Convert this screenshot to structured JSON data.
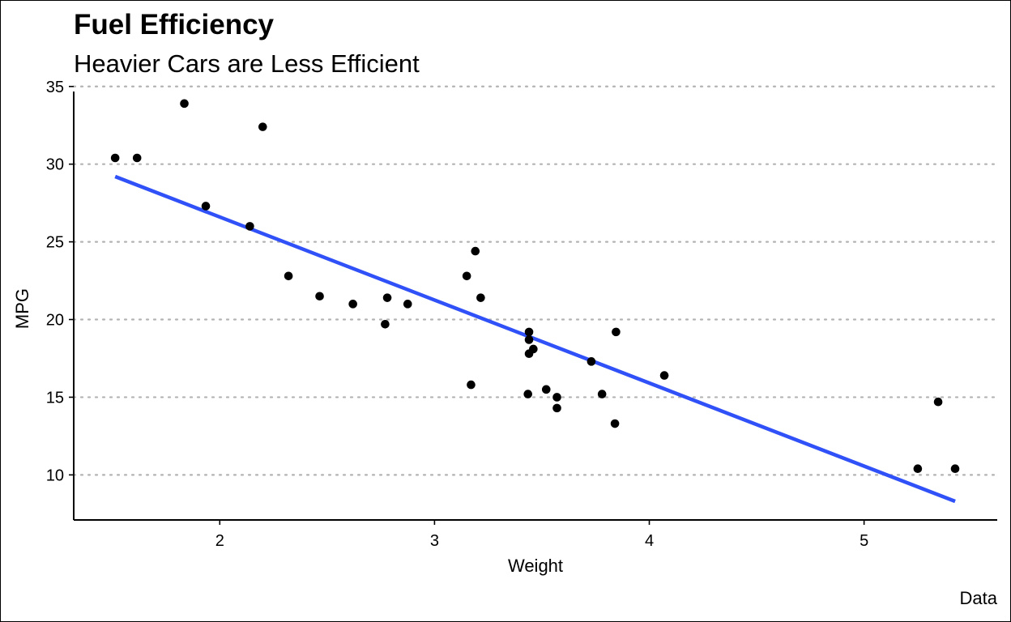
{
  "chart_data": {
    "type": "scatter",
    "title": "Fuel Efficiency",
    "subtitle": "Heavier Cars are Less Efficient",
    "caption": "Data",
    "xlabel": "Weight",
    "ylabel": "MPG",
    "xlim": [
      1.32,
      5.62
    ],
    "ylim": [
      7.1,
      35.3
    ],
    "xticks": [
      2,
      3,
      4,
      5
    ],
    "yticks": [
      10,
      15,
      20,
      25,
      30,
      35
    ],
    "grid": "horizontal-dotted",
    "legend": "none",
    "points": [
      {
        "x": 1.513,
        "y": 30.4
      },
      {
        "x": 1.615,
        "y": 30.4
      },
      {
        "x": 1.835,
        "y": 33.9
      },
      {
        "x": 1.935,
        "y": 27.3
      },
      {
        "x": 2.14,
        "y": 26.0
      },
      {
        "x": 2.2,
        "y": 32.4
      },
      {
        "x": 2.32,
        "y": 22.8
      },
      {
        "x": 2.465,
        "y": 21.5
      },
      {
        "x": 2.62,
        "y": 21.0
      },
      {
        "x": 2.77,
        "y": 19.7
      },
      {
        "x": 2.78,
        "y": 21.4
      },
      {
        "x": 2.875,
        "y": 21.0
      },
      {
        "x": 3.15,
        "y": 22.8
      },
      {
        "x": 3.17,
        "y": 15.8
      },
      {
        "x": 3.19,
        "y": 24.4
      },
      {
        "x": 3.215,
        "y": 21.4
      },
      {
        "x": 3.435,
        "y": 15.2
      },
      {
        "x": 3.44,
        "y": 17.8
      },
      {
        "x": 3.44,
        "y": 18.7
      },
      {
        "x": 3.44,
        "y": 19.2
      },
      {
        "x": 3.46,
        "y": 18.1
      },
      {
        "x": 3.52,
        "y": 15.5
      },
      {
        "x": 3.57,
        "y": 14.3
      },
      {
        "x": 3.57,
        "y": 15.0
      },
      {
        "x": 3.73,
        "y": 17.3
      },
      {
        "x": 3.78,
        "y": 15.2
      },
      {
        "x": 3.84,
        "y": 13.3
      },
      {
        "x": 3.845,
        "y": 19.2
      },
      {
        "x": 4.07,
        "y": 16.4
      },
      {
        "x": 5.25,
        "y": 10.4
      },
      {
        "x": 5.345,
        "y": 14.7
      },
      {
        "x": 5.424,
        "y": 10.4
      }
    ],
    "trend_line": {
      "color": "#3050f8",
      "start": {
        "x": 1.513,
        "y": 29.2
      },
      "end": {
        "x": 5.424,
        "y": 8.3
      }
    },
    "colors": {
      "points": "#000000",
      "grid": "#b3b3b3",
      "axis": "#000000"
    }
  }
}
